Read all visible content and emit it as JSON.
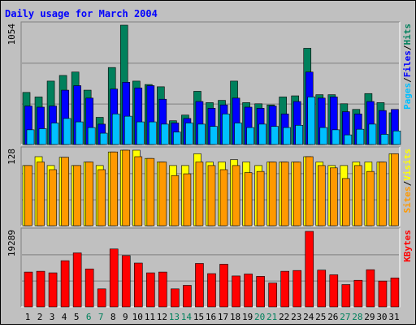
{
  "chart_data": [
    {
      "type": "bar",
      "title": "Daily usage for March 2004",
      "ylabel": "Pages / Files / Hits",
      "y_max_label": "1054",
      "ylim": [
        0,
        1054
      ],
      "categories": [
        "1",
        "2",
        "3",
        "4",
        "5",
        "6",
        "7",
        "8",
        "9",
        "10",
        "11",
        "12",
        "13",
        "14",
        "15",
        "16",
        "17",
        "18",
        "19",
        "20",
        "21",
        "22",
        "23",
        "24",
        "25",
        "26",
        "27",
        "28",
        "29",
        "30",
        "31"
      ],
      "weekend_days": [
        "6",
        "7",
        "13",
        "14",
        "20",
        "21",
        "27",
        "28"
      ],
      "series": [
        {
          "name": "Hits",
          "color": "#00805c",
          "values": [
            460,
            420,
            560,
            610,
            640,
            480,
            240,
            680,
            1054,
            560,
            530,
            510,
            210,
            260,
            470,
            370,
            390,
            560,
            370,
            360,
            350,
            420,
            430,
            850,
            440,
            440,
            360,
            310,
            450,
            370,
            280
          ]
        },
        {
          "name": "Files",
          "color": "#0000ff",
          "values": [
            340,
            330,
            340,
            480,
            520,
            410,
            180,
            490,
            550,
            500,
            520,
            400,
            190,
            230,
            380,
            320,
            350,
            410,
            330,
            320,
            340,
            270,
            380,
            640,
            410,
            420,
            290,
            270,
            380,
            300,
            310
          ]
        },
        {
          "name": "Pages",
          "color": "#00c0ff",
          "values": [
            130,
            140,
            190,
            230,
            200,
            150,
            100,
            270,
            250,
            200,
            200,
            180,
            110,
            190,
            180,
            160,
            270,
            190,
            150,
            180,
            160,
            150,
            170,
            420,
            150,
            130,
            85,
            135,
            180,
            90,
            120
          ]
        }
      ]
    },
    {
      "type": "bar",
      "ylabel": "Sites / Visits",
      "y_max_label": "128",
      "ylim": [
        0,
        128
      ],
      "categories": [
        "1",
        "2",
        "3",
        "4",
        "5",
        "6",
        "7",
        "8",
        "9",
        "10",
        "11",
        "12",
        "13",
        "14",
        "15",
        "16",
        "17",
        "18",
        "19",
        "20",
        "21",
        "22",
        "23",
        "24",
        "25",
        "26",
        "27",
        "28",
        "29",
        "30",
        "31"
      ],
      "series": [
        {
          "name": "Visits",
          "color": "#ffff00",
          "values": [
            102,
            117,
            102,
            116,
            102,
            108,
            102,
            125,
            128,
            128,
            114,
            108,
            102,
            102,
            122,
            108,
            108,
            112,
            108,
            102,
            108,
            108,
            108,
            117,
            108,
            102,
            102,
            108,
            108,
            108,
            122
          ]
        },
        {
          "name": "Sites",
          "color": "#ff9900",
          "values": [
            102,
            108,
            95,
            116,
            102,
            108,
            95,
            125,
            128,
            117,
            114,
            108,
            85,
            88,
            108,
            102,
            95,
            102,
            90,
            92,
            108,
            108,
            108,
            117,
            102,
            98,
            80,
            102,
            92,
            108,
            122
          ]
        }
      ]
    },
    {
      "type": "bar",
      "ylabel": "KBytes",
      "y_max_label": "19289",
      "ylim": [
        0,
        19289
      ],
      "categories": [
        "1",
        "2",
        "3",
        "4",
        "5",
        "6",
        "7",
        "8",
        "9",
        "10",
        "11",
        "12",
        "13",
        "14",
        "15",
        "16",
        "17",
        "18",
        "19",
        "20",
        "21",
        "22",
        "23",
        "24",
        "25",
        "26",
        "27",
        "28",
        "29",
        "30",
        "31"
      ],
      "series": [
        {
          "name": "KBytes",
          "color": "#ff0000",
          "values": [
            8900,
            9100,
            8700,
            11800,
            13800,
            9700,
            4600,
            14800,
            13100,
            11200,
            8700,
            8900,
            4600,
            5500,
            11100,
            8500,
            10900,
            7900,
            8400,
            7800,
            6100,
            9100,
            9300,
            19289,
            9400,
            8200,
            5700,
            6800,
            9500,
            6600,
            7400
          ]
        }
      ]
    }
  ]
}
